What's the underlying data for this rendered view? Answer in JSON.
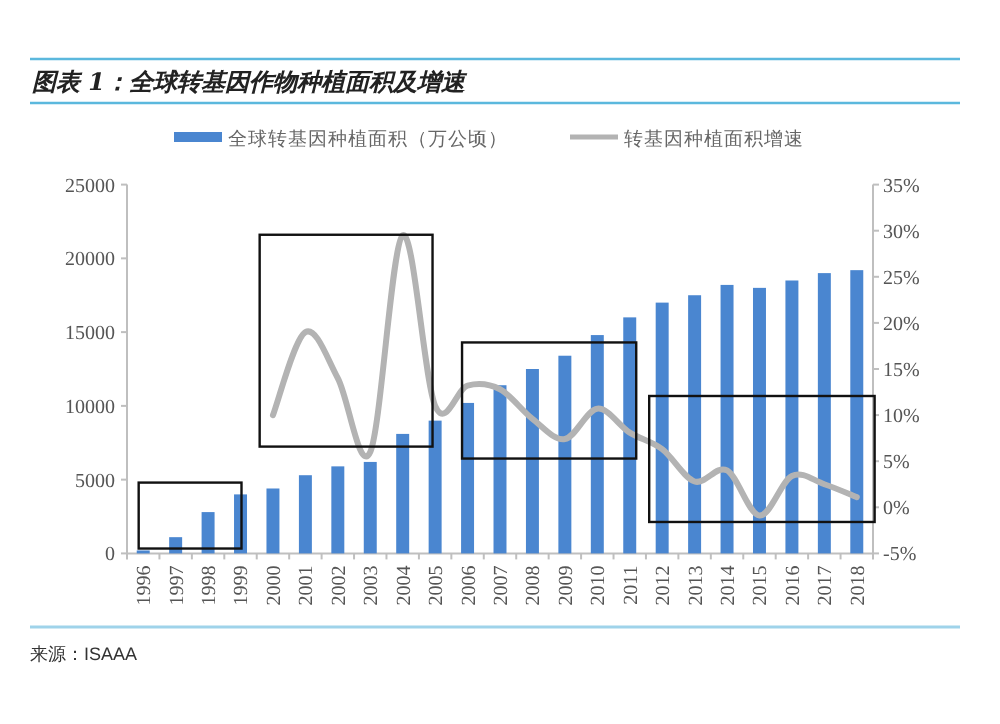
{
  "chart_data": {
    "type": "bar",
    "title": "图表 1：全球转基因作物种植面积及增速",
    "categories": [
      "1996",
      "1997",
      "1998",
      "1999",
      "2000",
      "2001",
      "2002",
      "2003",
      "2004",
      "2005",
      "2006",
      "2007",
      "2008",
      "2009",
      "2010",
      "2011",
      "2012",
      "2013",
      "2014",
      "2015",
      "2016",
      "2017",
      "2018"
    ],
    "series": [
      {
        "name": "全球转基因种植面积（万公顷）",
        "color": "#4a86d0",
        "values": [
          200,
          1100,
          2800,
          4000,
          4400,
          5300,
          5900,
          6200,
          8100,
          9000,
          10200,
          11400,
          12500,
          13400,
          14800,
          16000,
          17000,
          17500,
          18200,
          18000,
          18500,
          19000,
          19200
        ]
      },
      {
        "name": "转基因种植面积增速",
        "type": "line",
        "axis": "y2",
        "color": "#b3b3b3",
        "values": [
          null,
          null,
          null,
          null,
          10,
          19,
          14,
          6,
          29.5,
          11,
          13.2,
          12.8,
          9.6,
          7.4,
          10.7,
          8.1,
          6.3,
          2.8,
          4,
          -0.9,
          3.4,
          2.5,
          1.1
        ]
      }
    ],
    "ylim": [
      0,
      25000
    ],
    "yticks": [
      0,
      5000,
      10000,
      15000,
      20000,
      25000
    ],
    "y2lim": [
      -5,
      35
    ],
    "y2ticks": [
      {
        "value": -5,
        "label": "-5%"
      },
      {
        "value": 0,
        "label": "0%"
      },
      {
        "value": 5,
        "label": "5%"
      },
      {
        "value": 10,
        "label": "10%"
      },
      {
        "value": 15,
        "label": "15%"
      },
      {
        "value": 20,
        "label": "20%"
      },
      {
        "value": 25,
        "label": "25%"
      },
      {
        "value": 30,
        "label": "30%"
      },
      {
        "value": 35,
        "label": "35%"
      }
    ],
    "legend": "top",
    "annotations": [
      "来源：ISAAA"
    ]
  }
}
